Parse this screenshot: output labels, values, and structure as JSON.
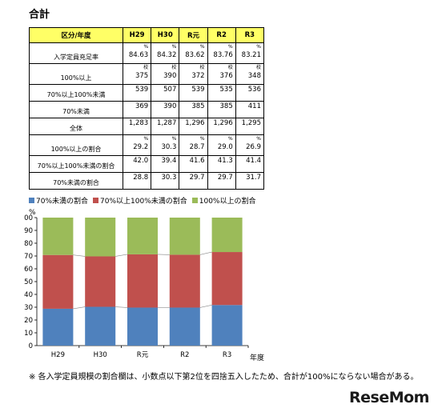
{
  "title": "合計",
  "table": {
    "header": [
      "区分/年度",
      "H29",
      "H30",
      "R元",
      "R2",
      "R3"
    ],
    "rows": [
      {
        "label": "入学定員充足率",
        "unit": "%",
        "values": [
          "84.63",
          "84.32",
          "83.62",
          "83.76",
          "83.21"
        ],
        "tall": true
      },
      {
        "label": "100%以上",
        "unit": "校",
        "values": [
          "375",
          "390",
          "372",
          "376",
          "348"
        ],
        "tall": true
      },
      {
        "label": "70%以上100%未満",
        "unit": "",
        "values": [
          "539",
          "507",
          "539",
          "535",
          "536"
        ],
        "tall": false
      },
      {
        "label": "70%未満",
        "unit": "",
        "values": [
          "369",
          "390",
          "385",
          "385",
          "411"
        ],
        "tall": false
      },
      {
        "label": "全体",
        "unit": "",
        "values": [
          "1,283",
          "1,287",
          "1,296",
          "1,296",
          "1,295"
        ],
        "tall": false
      },
      {
        "label": "100%以上の割合",
        "unit": "%",
        "values": [
          "29.2",
          "30.3",
          "28.7",
          "29.0",
          "26.9"
        ],
        "tall": true
      },
      {
        "label": "70%以上100%未満の割合",
        "unit": "",
        "values": [
          "42.0",
          "39.4",
          "41.6",
          "41.3",
          "41.4"
        ],
        "tall": false
      },
      {
        "label": "70%未満の割合",
        "unit": "",
        "values": [
          "28.8",
          "30.3",
          "29.7",
          "29.7",
          "31.7"
        ],
        "tall": false
      }
    ]
  },
  "chart_data": {
    "type": "bar",
    "stacked": true,
    "categories": [
      "H29",
      "H30",
      "R元",
      "R2",
      "R3"
    ],
    "series": [
      {
        "name": "70%未満の割合",
        "values": [
          28.8,
          30.3,
          29.7,
          29.7,
          31.7
        ],
        "color": "#4F81BD"
      },
      {
        "name": "70%以上100%未満の割合",
        "values": [
          42.0,
          39.4,
          41.6,
          41.3,
          41.4
        ],
        "color": "#C0504D"
      },
      {
        "name": "100%以上の割合",
        "values": [
          29.2,
          30.3,
          28.7,
          29.0,
          26.9
        ],
        "color": "#9BBB59"
      }
    ],
    "ylabel": "%",
    "xlabel": "年度",
    "ylim": [
      0,
      100
    ],
    "yticks": [
      0,
      10,
      20,
      30,
      40,
      50,
      60,
      70,
      80,
      90,
      100
    ],
    "legend": "top",
    "grid": false
  },
  "note": "※ 各入学定員規模の割合欄は、小数点以下第2位を四捨五入したため、合計が100%にならない場合がある。",
  "logo": {
    "main": "ReseMom",
    "accent": ""
  }
}
